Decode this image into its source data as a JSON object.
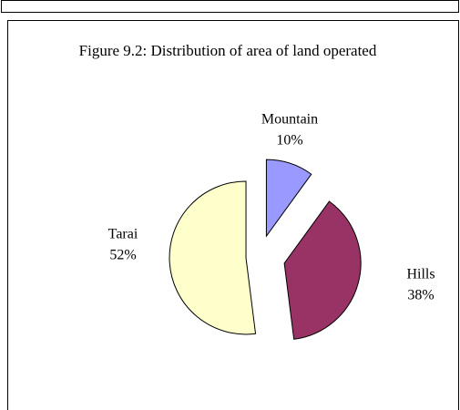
{
  "chart_data": {
    "type": "pie",
    "title": "Figure 9.2: Distribution of area of land operated",
    "categories": [
      "Mountain",
      "Hills",
      "Tarai"
    ],
    "values": [
      10,
      38,
      52
    ],
    "value_labels": [
      "10%",
      "38%",
      "52%"
    ],
    "colors": [
      "#9999ff",
      "#993366",
      "#ffffcc"
    ]
  }
}
